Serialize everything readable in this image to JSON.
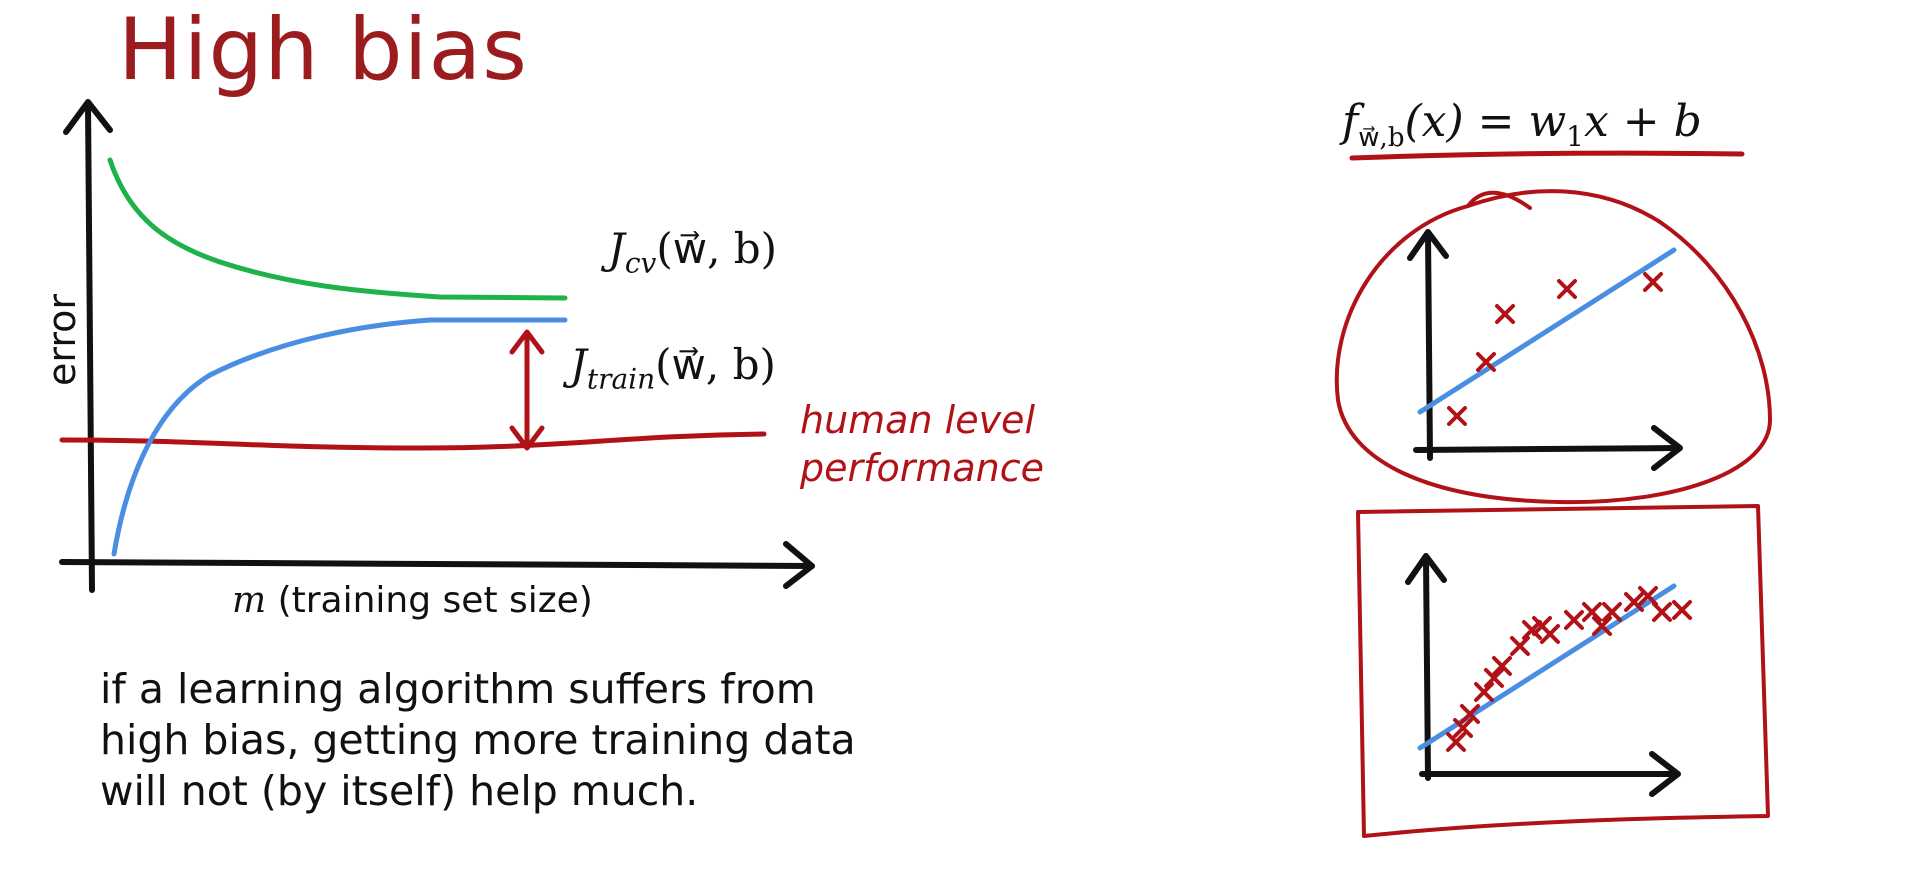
{
  "slide": {
    "title": "High bias",
    "caption": "if a learning algorithm suffers from high bias, getting more training data will not (by itself) help much."
  },
  "learning_curve": {
    "y_axis_label": "error",
    "x_axis_label_var": "m",
    "x_axis_label_rest": " (training set size)",
    "jcv_label": "J",
    "jcv_sub": "cv",
    "jtrain_label": "J",
    "jtrain_sub": "train",
    "args": "(w⃗, b)",
    "baseline_label_line1": "human level",
    "baseline_label_line2": "performance",
    "colors": {
      "cv": "#20b24a",
      "train": "#4a8ee3",
      "human": "#b01218"
    }
  },
  "model": {
    "f": "f",
    "f_sub": "w⃗,b",
    "formula_rest": "(x) = w",
    "w_sub": "1",
    "formula_tail": "x + b"
  },
  "icons": [
    "cross-mark-icon"
  ]
}
